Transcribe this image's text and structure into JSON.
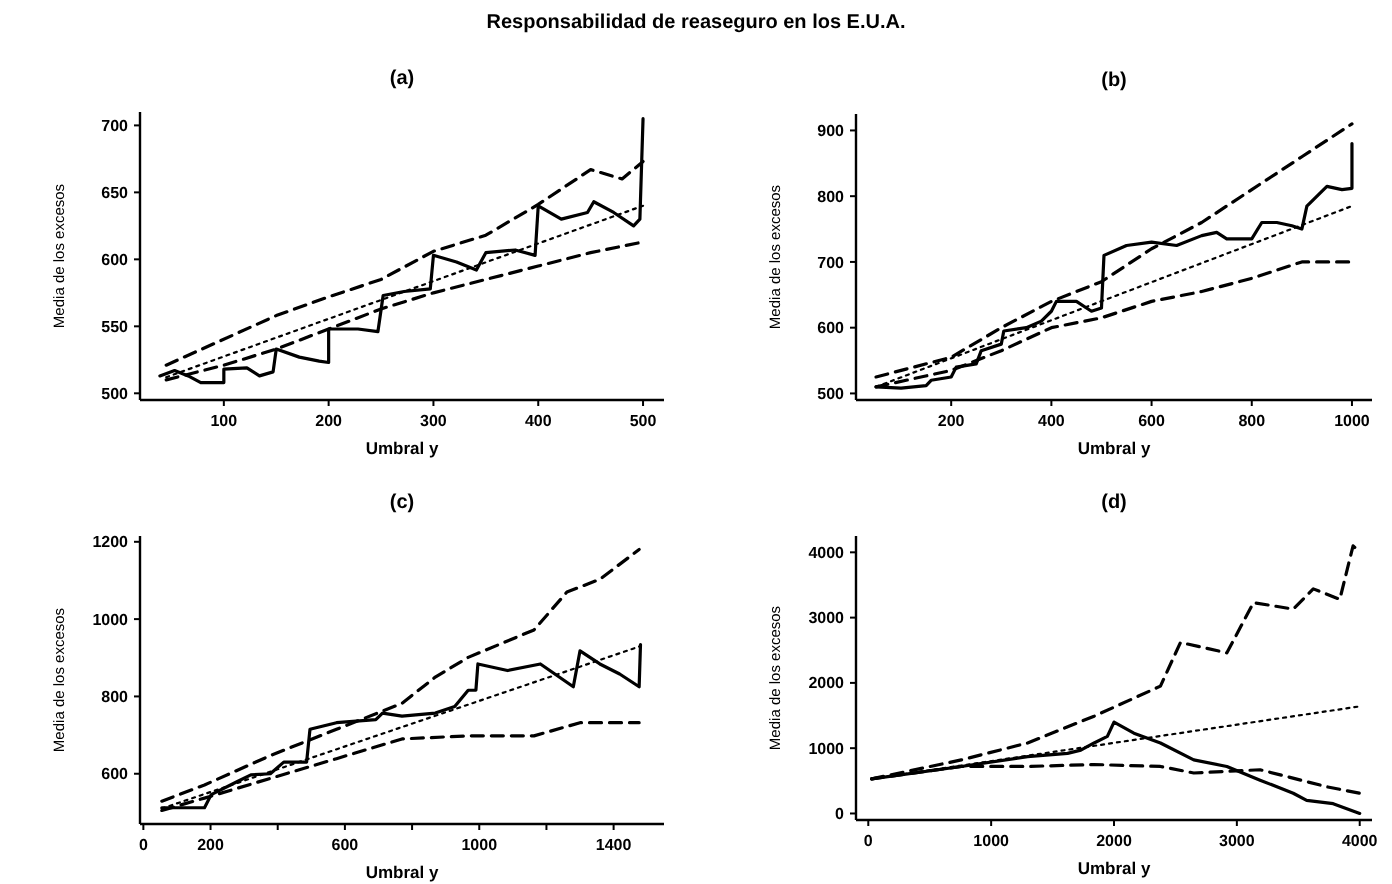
{
  "chart_data": [
    {
      "type": "line",
      "title": "(a)",
      "annotations": [
        "Responsabilidad de reaseguro en los E.U.A."
      ],
      "xlabel": "Umbral y",
      "ylabel": "Media de los excesos",
      "xlim": [
        20,
        520
      ],
      "ylim": [
        495,
        710
      ],
      "xticks": [
        100,
        200,
        300,
        400,
        500
      ],
      "yticks": [
        500,
        550,
        600,
        650,
        700
      ],
      "series": [
        {
          "color": "#000000",
          "line_style": "solid",
          "x": [
            39,
            53,
            66,
            78,
            100,
            100,
            122,
            134,
            147,
            150,
            172,
            191,
            200,
            200,
            228,
            247,
            252,
            272,
            297,
            300,
            322,
            341,
            350,
            378,
            397,
            400,
            422,
            447,
            453,
            472,
            491,
            497,
            500
          ],
          "values": [
            513,
            517,
            513,
            508,
            508,
            518,
            519,
            513,
            516,
            533,
            527,
            524,
            523,
            548,
            548,
            546,
            573,
            576,
            578,
            603,
            598,
            592,
            605,
            607,
            603,
            640,
            630,
            635,
            643,
            635,
            625,
            630,
            705
          ]
        },
        {
          "color": "#000000",
          "line_style": "dashed",
          "x": [
            45,
            150,
            200,
            250,
            300,
            350,
            400,
            450,
            480,
            500
          ],
          "values": [
            521,
            558,
            572,
            585,
            606,
            618,
            641,
            667,
            660,
            673
          ]
        },
        {
          "color": "#000000",
          "line_style": "dashed",
          "x": [
            45,
            100,
            150,
            200,
            250,
            300,
            350,
            400,
            450,
            500
          ],
          "values": [
            510,
            521,
            533,
            548,
            563,
            575,
            585,
            595,
            605,
            613
          ]
        },
        {
          "color": "#000000",
          "line_style": "dotted",
          "x": [
            45,
            500
          ],
          "values": [
            512,
            640
          ]
        }
      ]
    },
    {
      "type": "line",
      "title": "(b)",
      "xlabel": "Umbral y",
      "ylabel": "Media de los excesos",
      "xlim": [
        10,
        1040
      ],
      "ylim": [
        490,
        925
      ],
      "xticks": [
        200,
        400,
        600,
        800,
        1000
      ],
      "yticks": [
        500,
        600,
        700,
        800,
        900
      ],
      "series": [
        {
          "color": "#000000",
          "line_style": "solid",
          "x": [
            50,
            100,
            150,
            160,
            200,
            210,
            250,
            260,
            300,
            305,
            350,
            380,
            400,
            410,
            450,
            480,
            500,
            505,
            550,
            600,
            650,
            700,
            730,
            750,
            800,
            820,
            850,
            880,
            900,
            910,
            950,
            980,
            1000,
            1000
          ],
          "values": [
            510,
            508,
            512,
            520,
            525,
            540,
            545,
            565,
            575,
            595,
            600,
            610,
            625,
            640,
            640,
            625,
            630,
            710,
            725,
            730,
            725,
            740,
            745,
            735,
            735,
            760,
            760,
            755,
            750,
            785,
            815,
            810,
            812,
            880
          ]
        },
        {
          "color": "#000000",
          "line_style": "dashed",
          "x": [
            50,
            200,
            300,
            400,
            500,
            600,
            700,
            800,
            900,
            1000
          ],
          "values": [
            525,
            555,
            600,
            640,
            670,
            720,
            760,
            810,
            860,
            910
          ]
        },
        {
          "color": "#000000",
          "line_style": "dashed",
          "x": [
            50,
            200,
            300,
            400,
            500,
            600,
            700,
            800,
            900,
            1000
          ],
          "values": [
            510,
            535,
            565,
            600,
            615,
            640,
            655,
            675,
            700,
            700
          ]
        },
        {
          "color": "#000000",
          "line_style": "dotted",
          "x": [
            50,
            1000
          ],
          "values": [
            510,
            785
          ]
        }
      ]
    },
    {
      "type": "line",
      "title": "(c)",
      "xlabel": "Umbral y",
      "ylabel": "Media de los excesos",
      "xlim": [
        -10,
        1550
      ],
      "ylim": [
        470,
        1215
      ],
      "xticks": [
        0,
        200,
        {
          "value": 400,
          "label": null
        },
        600,
        {
          "value": 800,
          "label": null
        },
        1000,
        {
          "value": 1200,
          "label": null
        },
        1400
      ],
      "yticks": [
        600,
        800,
        1000,
        1200
      ],
      "series": [
        {
          "color": "#000000",
          "line_style": "solid",
          "x": [
            55,
            182,
            202,
            280,
            320,
            378,
            418,
            486,
            496,
            575,
            692,
            712,
            770,
            869,
            927,
            967,
            990,
            996,
            1084,
            1182,
            1280,
            1300,
            1359,
            1418,
            1476,
            1480
          ],
          "values": [
            512,
            512,
            546,
            580,
            597,
            600,
            630,
            630,
            715,
            732,
            740,
            757,
            749,
            757,
            774,
            816,
            816,
            884,
            867,
            884,
            825,
            918,
            884,
            858,
            825,
            934
          ]
        },
        {
          "color": "#000000",
          "line_style": "dashed",
          "x": [
            55,
            182,
            378,
            575,
            770,
            869,
            967,
            1163,
            1261,
            1359,
            1476
          ],
          "values": [
            529,
            571,
            647,
            715,
            782,
            850,
            901,
            972,
            1070,
            1103,
            1180
          ]
        },
        {
          "color": "#000000",
          "line_style": "dashed",
          "x": [
            55,
            182,
            378,
            575,
            770,
            967,
            1163,
            1300,
            1476
          ],
          "values": [
            505,
            537,
            588,
            639,
            690,
            698,
            698,
            732,
            732
          ]
        },
        {
          "color": "#000000",
          "line_style": "dotted",
          "x": [
            55,
            1480
          ],
          "values": [
            510,
            930
          ]
        }
      ]
    },
    {
      "type": "line",
      "title": "(d)",
      "xlabel": "Umbral y",
      "ylabel": "Media de los excesos",
      "xlim": [
        -100,
        4100
      ],
      "ylim": [
        -100,
        4250
      ],
      "xticks": [
        0,
        1000,
        2000,
        3000,
        4000
      ],
      "yticks": [
        0,
        1000,
        2000,
        3000,
        4000
      ],
      "series": [
        {
          "color": "#000000",
          "line_style": "solid",
          "x": [
            27,
            757,
            1297,
            1622,
            1730,
            1838,
            1946,
            2000,
            2162,
            2378,
            2649,
            2919,
            3189,
            3459,
            3568,
            3784,
            4000
          ],
          "values": [
            530,
            720,
            870,
            920,
            970,
            1080,
            1180,
            1400,
            1230,
            1080,
            820,
            720,
            510,
            310,
            200,
            150,
            0
          ]
        },
        {
          "color": "#000000",
          "line_style": "dashed",
          "x": [
            27,
            757,
            1297,
            1838,
            2378,
            2541,
            2919,
            3135,
            3459,
            3622,
            3838,
            3946,
            4000
          ],
          "values": [
            530,
            820,
            1080,
            1490,
            1950,
            2620,
            2460,
            3230,
            3130,
            3440,
            3280,
            4100,
            4000
          ]
        },
        {
          "color": "#000000",
          "line_style": "dashed",
          "x": [
            27,
            757,
            1297,
            1838,
            2378,
            2649,
            3189,
            3730,
            4000
          ],
          "values": [
            530,
            720,
            720,
            750,
            720,
            620,
            670,
            410,
            310
          ]
        },
        {
          "color": "#000000",
          "line_style": "dotted",
          "x": [
            27,
            4000
          ],
          "values": [
            530,
            1640
          ]
        }
      ]
    }
  ]
}
